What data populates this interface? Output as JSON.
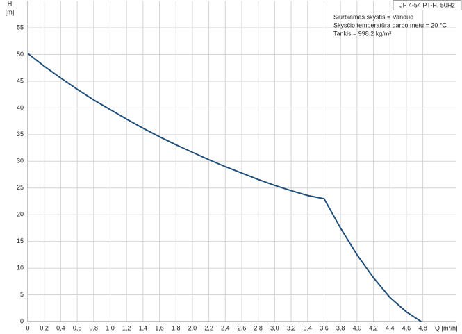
{
  "chart_data": {
    "type": "line",
    "title": "JP 4-54 PT-H, 50Hz",
    "annotations": [
      "Siurbiamas skystis = Vanduo",
      "Skysčio temperatūra darbo metu = 20 °C",
      "Tankis = 998.2 kg/m³"
    ],
    "y_label": "H",
    "y_unit": "[m]",
    "x_label": "Q [m³/h]",
    "x": [
      0,
      0.2,
      0.4,
      0.6,
      0.8,
      1.0,
      1.2,
      1.4,
      1.6,
      1.8,
      2.0,
      2.2,
      2.4,
      2.6,
      2.8,
      3.0,
      3.2,
      3.4,
      3.6,
      3.8,
      4.0,
      4.2,
      4.4,
      4.6,
      4.78
    ],
    "values": [
      50.2,
      47.8,
      45.6,
      43.5,
      41.5,
      39.7,
      37.9,
      36.2,
      34.6,
      33.1,
      31.7,
      30.3,
      29.0,
      27.8,
      26.6,
      25.5,
      24.5,
      23.6,
      23.0,
      17.5,
      12.5,
      8.2,
      4.5,
      1.8,
      0
    ],
    "color": "#1f4e79",
    "xlim": [
      0,
      5.2
    ],
    "ylim": [
      0,
      60
    ],
    "xticks": [
      0,
      {
        "value": 0.2,
        "label": "0,2"
      },
      {
        "value": 0.4,
        "label": "0,4"
      },
      {
        "value": 0.6,
        "label": "0,6"
      },
      {
        "value": 0.8,
        "label": "0,8"
      },
      {
        "value": 1.0,
        "label": "1,0"
      },
      {
        "value": 1.2,
        "label": "1,2"
      },
      {
        "value": 1.4,
        "label": "1,4"
      },
      {
        "value": 1.6,
        "label": "1,6"
      },
      {
        "value": 1.8,
        "label": "1,8"
      },
      {
        "value": 2.0,
        "label": "2,0"
      },
      {
        "value": 2.2,
        "label": "2,2"
      },
      {
        "value": 2.4,
        "label": "2,4"
      },
      {
        "value": 2.6,
        "label": "2,6"
      },
      {
        "value": 2.8,
        "label": "2,8"
      },
      {
        "value": 3.0,
        "label": "3,0"
      },
      {
        "value": 3.2,
        "label": "3,2"
      },
      {
        "value": 3.4,
        "label": "3,4"
      },
      {
        "value": 3.6,
        "label": "3,6"
      },
      {
        "value": 3.8,
        "label": "3,8"
      },
      {
        "value": 4.0,
        "label": "4,0"
      },
      {
        "value": 4.2,
        "label": "4,2"
      },
      {
        "value": 4.4,
        "label": "4,4"
      },
      {
        "value": 4.6,
        "label": "4,6"
      },
      {
        "value": 4.8,
        "label": "4,8"
      }
    ],
    "yticks": [
      0,
      5,
      10,
      15,
      20,
      25,
      30,
      35,
      40,
      45,
      50,
      55
    ],
    "grid": true
  }
}
